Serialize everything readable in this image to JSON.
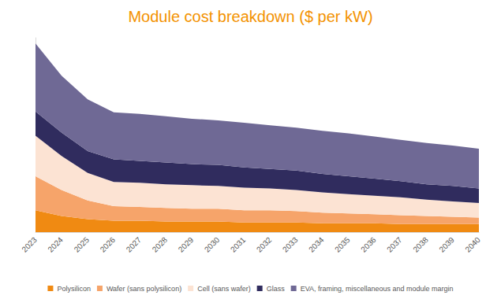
{
  "chart_data": {
    "type": "area",
    "title": "Module cost breakdown ($ per kW)",
    "categories": [
      "2023",
      "2024",
      "2025",
      "2026",
      "2027",
      "2028",
      "2029",
      "2030",
      "2031",
      "2032",
      "2033",
      "2034",
      "2035",
      "2036",
      "2037",
      "2038",
      "2039",
      "2040"
    ],
    "series": [
      {
        "name": "Polysilicon",
        "color": "#f08a12",
        "values": [
          27,
          20,
          16,
          14,
          14,
          13,
          13,
          13,
          12,
          12,
          12,
          11,
          11,
          11,
          10,
          10,
          10,
          10
        ]
      },
      {
        "name": "Wafer (sans polysilicon)",
        "color": "#f6a46a",
        "values": [
          42,
          32,
          23,
          18,
          17,
          17,
          16,
          16,
          15,
          15,
          14,
          13,
          12,
          11,
          11,
          10,
          9,
          8
        ]
      },
      {
        "name": "Cell (sans wafer)",
        "color": "#fce3d3",
        "values": [
          50,
          42,
          34,
          30,
          30,
          29,
          29,
          28,
          28,
          27,
          26,
          25,
          24,
          23,
          22,
          20,
          19,
          18
        ]
      },
      {
        "name": "Glass",
        "color": "#302c5e",
        "values": [
          30,
          29,
          27,
          28,
          27,
          27,
          26,
          26,
          25,
          24,
          24,
          23,
          22,
          21,
          20,
          19,
          19,
          18
        ]
      },
      {
        "name": "EVA, framing, miscellaneous and module margin",
        "color": "#6f6995",
        "values": [
          84,
          70,
          64,
          58,
          58,
          57,
          56,
          55,
          55,
          54,
          53,
          53,
          53,
          52,
          51,
          51,
          50,
          49
        ]
      }
    ],
    "ylim": [
      0,
      240
    ],
    "stacked": true,
    "grid": false,
    "legend": "bottom",
    "tick_labels": "x"
  }
}
